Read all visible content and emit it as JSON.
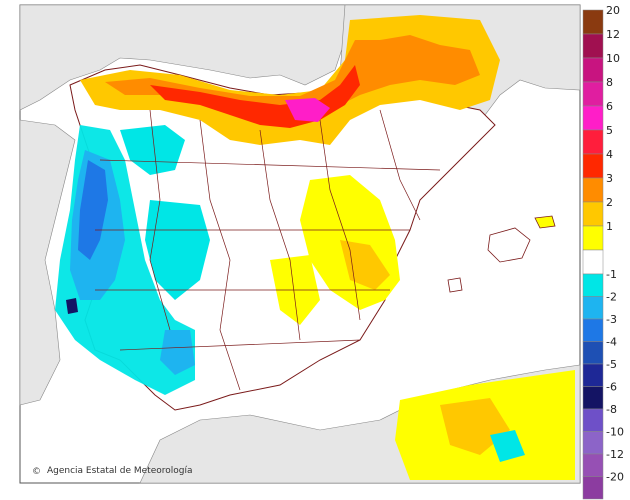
{
  "map": {
    "credit": "Agencia Estatal de Meteorología",
    "credit_symbol": "©",
    "sea_color": "#ffffff",
    "foreign_land_color": "#e6e6e6",
    "border_color": "#7a1a1a"
  },
  "legend": {
    "positive": [
      {
        "label": "20",
        "color": "#8a3a10"
      },
      {
        "label": "12",
        "color": "#a01050"
      },
      {
        "label": "10",
        "color": "#c81480"
      },
      {
        "label": "8",
        "color": "#e01ea0"
      },
      {
        "label": "6",
        "color": "#ff1ec8"
      },
      {
        "label": "5",
        "color": "#ff1e3c"
      },
      {
        "label": "4",
        "color": "#ff2800"
      },
      {
        "label": "3",
        "color": "#ff8c00"
      },
      {
        "label": "2",
        "color": "#ffc800"
      },
      {
        "label": "1",
        "color": "#ffff00"
      }
    ],
    "neutral_color": "#ffffff",
    "negative": [
      {
        "label": "-1",
        "color": "#00e6e6"
      },
      {
        "label": "-2",
        "color": "#1eb4f0"
      },
      {
        "label": "-3",
        "color": "#1e78e6"
      },
      {
        "label": "-4",
        "color": "#1e50b4"
      },
      {
        "label": "-5",
        "color": "#1e2896"
      },
      {
        "label": "-6",
        "color": "#141464"
      },
      {
        "label": "-8",
        "color": "#6e50c8"
      },
      {
        "label": "-10",
        "color": "#8c64c8"
      },
      {
        "label": "-12",
        "color": "#9650b4"
      },
      {
        "label": "-20",
        "color": "#8c3ca0"
      }
    ]
  }
}
